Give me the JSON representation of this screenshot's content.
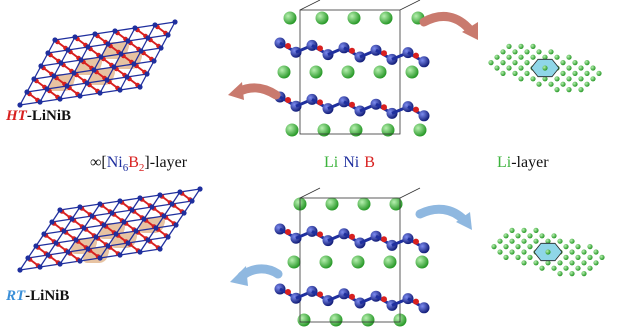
{
  "labels": {
    "ht_prefix": "HT",
    "ht_rest": "-LiNiB",
    "rt_prefix": "RT",
    "rt_rest": "-LiNiB",
    "layer_inf": "∞[",
    "layer_ni": "Ni",
    "layer_ni_sub": "6",
    "layer_b": "B",
    "layer_b_sub": "2",
    "layer_close": "]-layer",
    "elem_li": "Li",
    "elem_ni": "Ni",
    "elem_b": "B",
    "li_layer_li": "Li",
    "li_layer_rest": "-layer"
  },
  "colors": {
    "ni": "#1f2f9e",
    "b": "#d8201f",
    "li": "#3cb33c",
    "ht_label": "#d8201f",
    "rt_label": "#3a8fd8",
    "arrow_ht": "#c97a6e",
    "arrow_rt": "#8fb8e0",
    "hex_fill": "#e7c3a2",
    "li_hex": "#8fd6e8"
  },
  "icons": {
    "ht_arrow": "curved-arrow-left-icon",
    "ht_arrow2": "curved-arrow-right-icon",
    "rt_arrow": "curved-arrow-left-icon",
    "rt_arrow2": "curved-arrow-right-icon"
  }
}
